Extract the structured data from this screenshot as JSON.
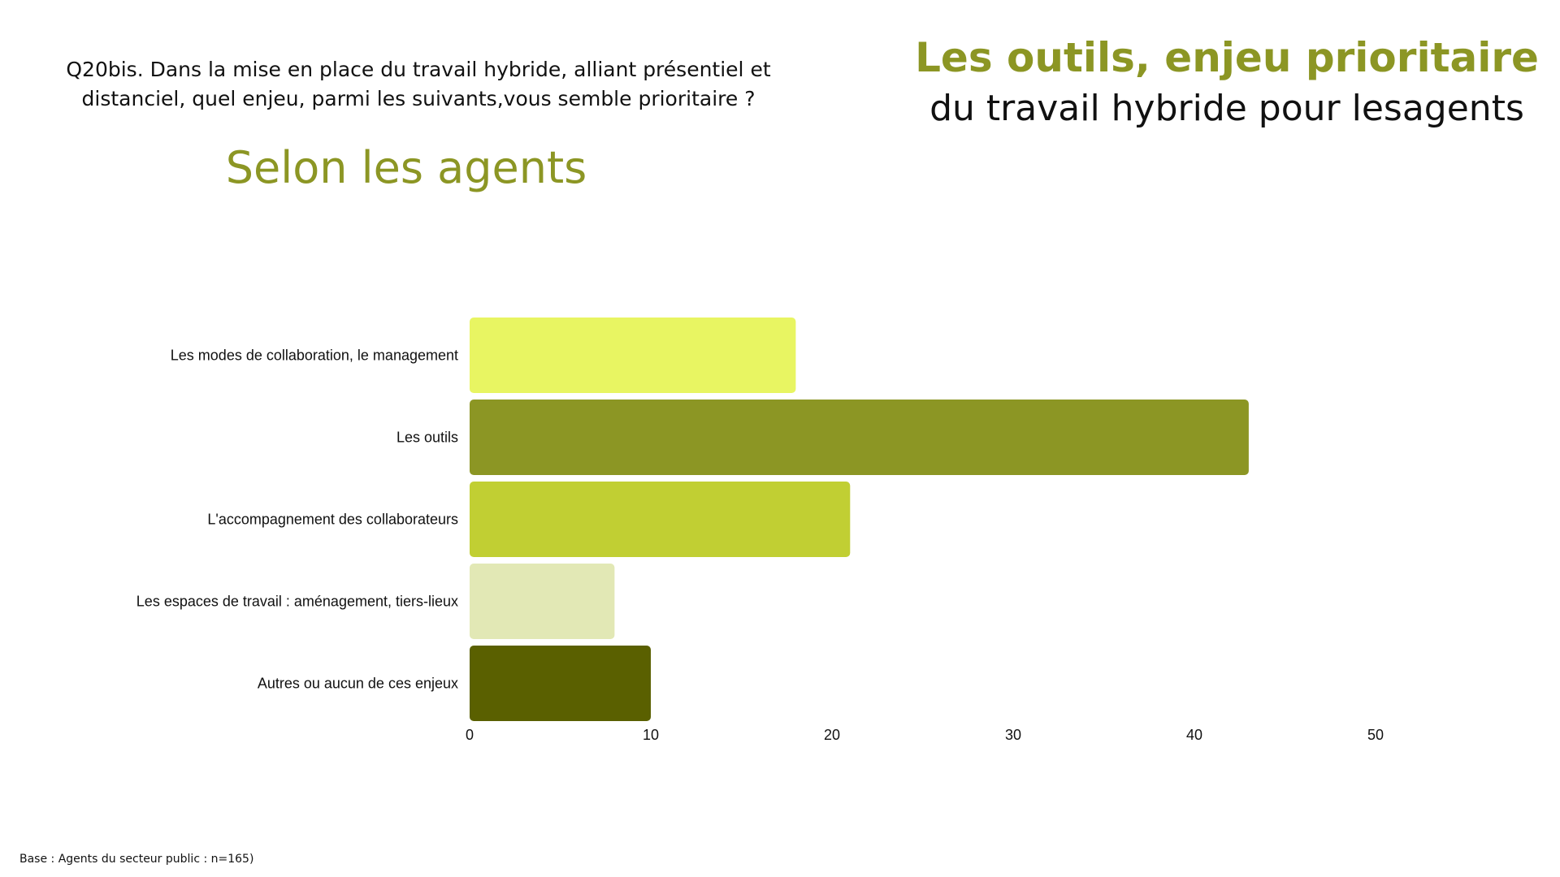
{
  "question": "Q20bis. Dans la mise en place du travail hybride, alliant présentiel et distanciel, quel enjeu, parmi les suivants,vous semble prioritaire ?",
  "subtitle_left": "Selon les agents",
  "title_line1": "Les outils, enjeu prioritaire",
  "title_line2": "du travail hybride pour lesagents",
  "footer": "Base : Agents du secteur public : n=165)",
  "chart_data": {
    "type": "bar",
    "orientation": "horizontal",
    "categories": [
      "Les modes de collaboration, le management",
      "Les outils",
      "L'accompagnement des collaborateurs",
      "Les espaces de travail : aménagement, tiers-lieux",
      "Autres ou aucun de ces enjeux"
    ],
    "values": [
      18,
      43,
      21,
      8,
      10
    ],
    "colors": [
      "#e8f562",
      "#8c9624",
      "#c1cf33",
      "#e2e8b5",
      "#5a6000"
    ],
    "xlim": [
      0,
      50
    ],
    "xticks": [
      "0",
      "10",
      "20",
      "30",
      "40",
      "50"
    ],
    "grid": false,
    "legend": "none"
  }
}
